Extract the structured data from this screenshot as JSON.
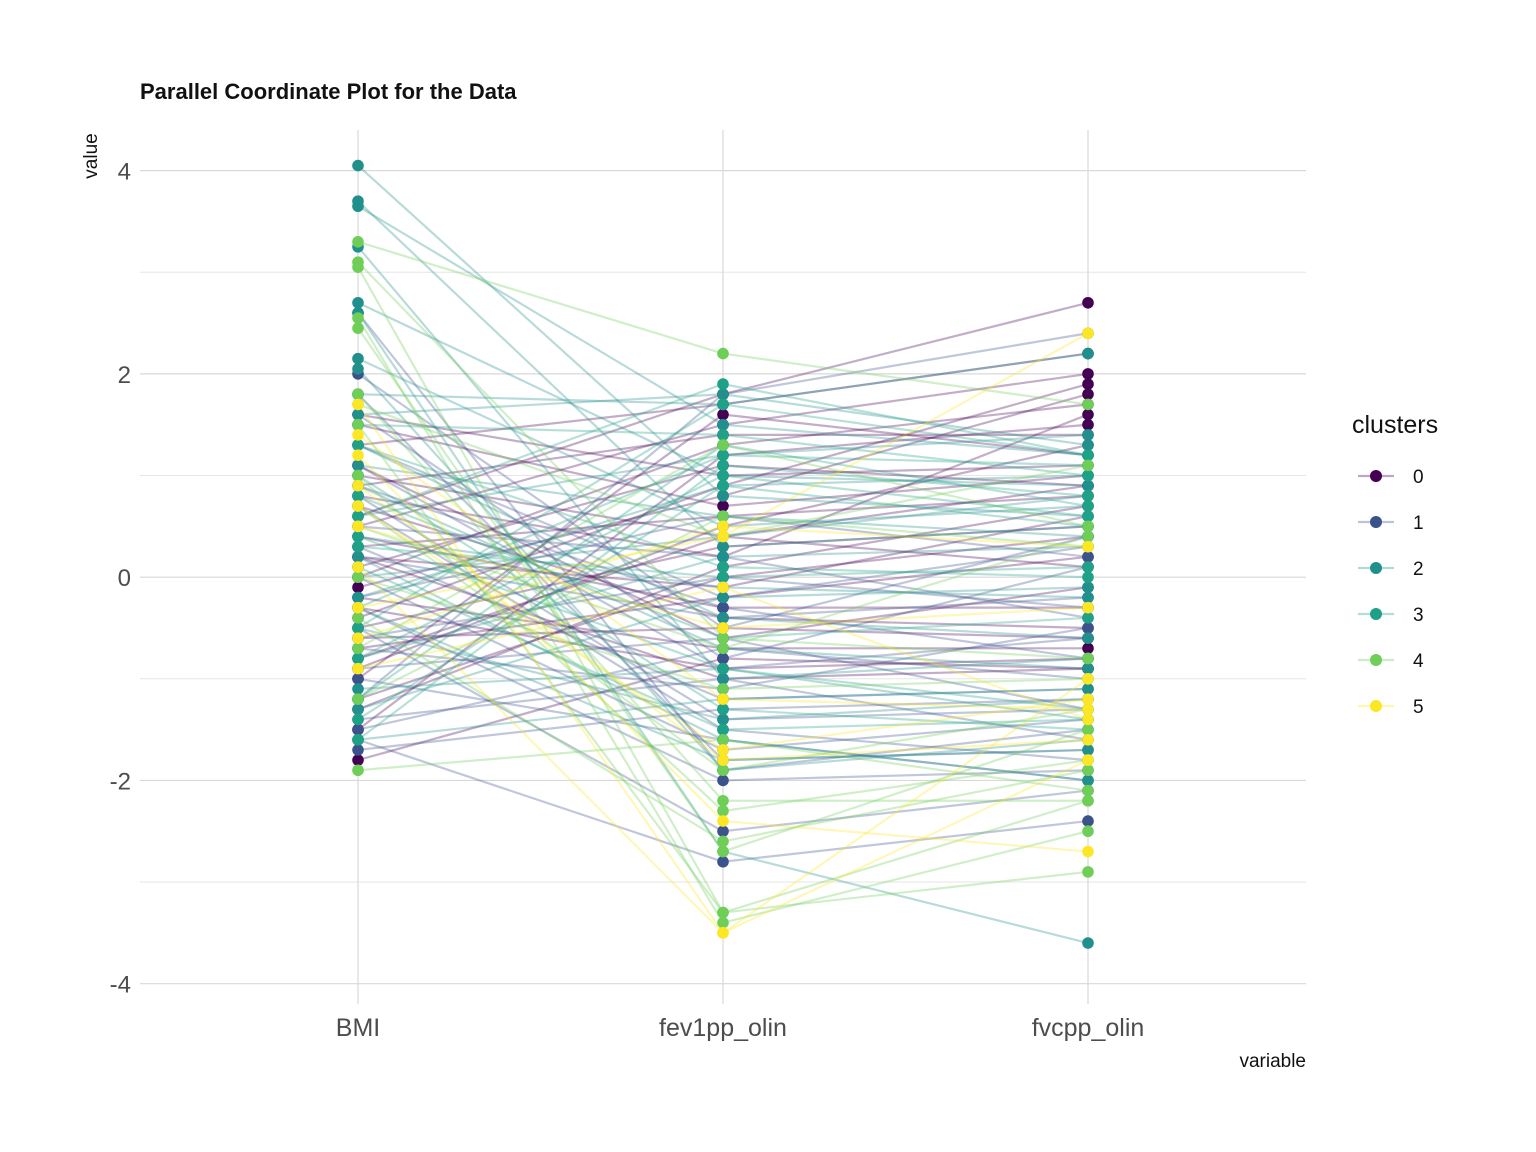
{
  "chart_data": {
    "type": "line",
    "subtype": "parallel-coordinates",
    "title": "Parallel Coordinate Plot for the Data",
    "xlabel": "variable",
    "ylabel": "value",
    "variables": [
      "BMI",
      "fev1pp_olin",
      "fvcpp_olin"
    ],
    "ylim": [
      -4.2,
      4.4
    ],
    "yticks": [
      -4,
      -2,
      0,
      2,
      4
    ],
    "grid": true,
    "legend": {
      "title": "clusters",
      "position": "right",
      "entries": [
        "0",
        "1",
        "2",
        "3",
        "4",
        "5"
      ]
    },
    "colors": [
      "#440154",
      "#3b528b",
      "#21908c",
      "#1fa187",
      "#6ece58",
      "#fde725"
    ],
    "series": [
      {
        "cluster": "0",
        "values": [
          [
            0.6,
            1.8,
            2.7
          ],
          [
            -1.8,
            -0.8,
            -0.9
          ],
          [
            1.0,
            0.4,
            0.1
          ],
          [
            -0.4,
            0.9,
            1.9
          ],
          [
            0.2,
            -0.1,
            0.6
          ],
          [
            -0.9,
            0.5,
            1.3
          ],
          [
            1.3,
            1.7,
            2.2
          ],
          [
            -0.6,
            -0.5,
            -0.6
          ],
          [
            0.8,
            0.2,
            1.6
          ],
          [
            -1.2,
            0.0,
            0.4
          ],
          [
            0.1,
            1.1,
            0.9
          ],
          [
            -0.3,
            -0.9,
            -0.8
          ],
          [
            1.5,
            0.7,
            1.0
          ],
          [
            -1.5,
            1.2,
            1.5
          ],
          [
            0.4,
            -0.3,
            -0.3
          ],
          [
            -0.1,
            0.8,
            1.8
          ],
          [
            0.9,
            1.4,
            1.4
          ],
          [
            -0.7,
            -0.2,
            0.2
          ],
          [
            0.3,
            0.6,
            0.8
          ],
          [
            -1.0,
            1.6,
            1.2
          ],
          [
            1.1,
            -0.6,
            -0.1
          ],
          [
            -0.5,
            0.3,
            0.5
          ],
          [
            0.0,
            1.3,
            1.7
          ],
          [
            0.7,
            -0.4,
            -0.5
          ],
          [
            -1.3,
            0.1,
            0.7
          ],
          [
            1.6,
            1.0,
            1.1
          ],
          [
            -0.2,
            -0.7,
            -0.7
          ],
          [
            0.5,
            1.5,
            2.0
          ],
          [
            -0.8,
            0.4,
            0.9
          ],
          [
            0.2,
            -1.0,
            -0.9
          ]
        ]
      },
      {
        "cluster": "1",
        "values": [
          [
            2.6,
            -1.9,
            -1.5
          ],
          [
            -1.6,
            -2.8,
            -2.4
          ],
          [
            0.3,
            -1.2,
            -1.1
          ],
          [
            -0.5,
            -2.5,
            -2.1
          ],
          [
            1.1,
            -0.9,
            -0.6
          ],
          [
            -1.2,
            1.8,
            2.4
          ],
          [
            0.7,
            -1.5,
            -1.8
          ],
          [
            -0.9,
            -0.6,
            -1.3
          ],
          [
            1.6,
            -0.8,
            0.1
          ],
          [
            -1.4,
            -1.0,
            -1.6
          ],
          [
            0.0,
            -1.7,
            -1.4
          ],
          [
            0.9,
            -0.3,
            -0.8
          ],
          [
            -0.3,
            -2.0,
            -1.9
          ],
          [
            1.3,
            -0.2,
            0.3
          ],
          [
            -1.7,
            -1.3,
            -1.2
          ],
          [
            0.5,
            0.2,
            -0.4
          ],
          [
            -0.7,
            -1.1,
            -0.5
          ],
          [
            2.0,
            -0.5,
            0.4
          ],
          [
            -1.0,
            -1.6,
            -2.0
          ],
          [
            0.2,
            -0.4,
            -0.2
          ],
          [
            1.8,
            -1.8,
            -1.7
          ],
          [
            -0.2,
            0.6,
            0.2
          ],
          [
            -1.5,
            -0.7,
            -1.0
          ],
          [
            0.8,
            -1.4,
            -1.3
          ],
          [
            -0.6,
            0.0,
            -0.3
          ]
        ]
      },
      {
        "cluster": "2",
        "values": [
          [
            4.05,
            0.8,
            0.6
          ],
          [
            3.65,
            1.5,
            1.2
          ],
          [
            3.7,
            0.3,
            0.5
          ],
          [
            3.25,
            -1.0,
            -0.8
          ],
          [
            2.7,
            1.0,
            0.9
          ],
          [
            2.6,
            -2.7,
            -3.6
          ],
          [
            2.15,
            0.5,
            0.7
          ],
          [
            2.05,
            -1.9,
            -1.6
          ],
          [
            1.8,
            1.7,
            2.2
          ],
          [
            1.3,
            -0.4,
            -0.6
          ],
          [
            -1.6,
            -1.2,
            -1.1
          ],
          [
            -0.8,
            0.2,
            0.3
          ],
          [
            0.2,
            -1.6,
            -2.0
          ],
          [
            -0.2,
            0.9,
            1.0
          ],
          [
            0.9,
            -0.7,
            -0.9
          ],
          [
            -1.3,
            -0.2,
            -0.1
          ],
          [
            0.6,
            1.2,
            1.4
          ],
          [
            -0.5,
            -1.4,
            -1.2
          ],
          [
            1.1,
            0.6,
            0.4
          ],
          [
            -1.1,
            -0.9,
            -1.4
          ],
          [
            0.4,
            -0.1,
            -0.2
          ],
          [
            1.6,
            1.8,
            1.3
          ],
          [
            -0.3,
            -1.8,
            -1.7
          ],
          [
            0.0,
            0.4,
            0.8
          ]
        ]
      },
      {
        "cluster": "3",
        "values": [
          [
            0.6,
            1.9,
            1.2
          ],
          [
            1.5,
            1.4,
            1.0
          ],
          [
            -1.6,
            1.1,
            0.8
          ],
          [
            -1.2,
            1.3,
            0.7
          ],
          [
            0.3,
            0.0,
            0.1
          ],
          [
            -0.3,
            1.2,
            1.1
          ],
          [
            0.8,
            -0.6,
            -0.4
          ],
          [
            -0.8,
            1.0,
            0.6
          ],
          [
            1.0,
            -1.3,
            -1.5
          ],
          [
            -1.4,
            0.9,
            0.5
          ],
          [
            0.1,
            -1.5,
            -1.4
          ],
          [
            1.3,
            0.1,
            0.0
          ],
          [
            -0.5,
            1.7,
            1.2
          ],
          [
            0.4,
            -0.9,
            -1.3
          ]
        ]
      },
      {
        "cluster": "4",
        "values": [
          [
            3.3,
            2.2,
            1.7
          ],
          [
            3.1,
            -0.6,
            -0.8
          ],
          [
            3.05,
            -3.3,
            -2.9
          ],
          [
            2.55,
            -3.4,
            -2.5
          ],
          [
            2.45,
            -2.7,
            -1.5
          ],
          [
            1.8,
            -2.2,
            -2.2
          ],
          [
            -1.9,
            -1.6,
            -2.1
          ],
          [
            1.5,
            -3.3,
            -2.2
          ],
          [
            0.5,
            -0.7,
            0.4
          ],
          [
            -0.7,
            1.3,
            0.5
          ],
          [
            1.0,
            -2.3,
            -1.8
          ],
          [
            0.0,
            -1.1,
            -1.0
          ],
          [
            -1.2,
            0.6,
            0.3
          ],
          [
            0.7,
            -1.9,
            -1.3
          ],
          [
            -0.4,
            -2.6,
            -1.9
          ],
          [
            1.7,
            0.4,
            1.1
          ]
        ]
      },
      {
        "cluster": "5",
        "values": [
          [
            1.7,
            -3.5,
            -1.8
          ],
          [
            1.2,
            -2.4,
            -2.7
          ],
          [
            0.7,
            -1.7,
            -1.2
          ],
          [
            -0.3,
            0.4,
            2.4
          ],
          [
            0.5,
            -0.5,
            -0.3
          ],
          [
            -0.9,
            -0.1,
            -1.4
          ],
          [
            1.4,
            -1.2,
            -1.3
          ],
          [
            0.1,
            -3.5,
            -1.0
          ],
          [
            -0.6,
            0.5,
            0.3
          ],
          [
            0.9,
            -1.8,
            -1.6
          ]
        ]
      }
    ]
  }
}
